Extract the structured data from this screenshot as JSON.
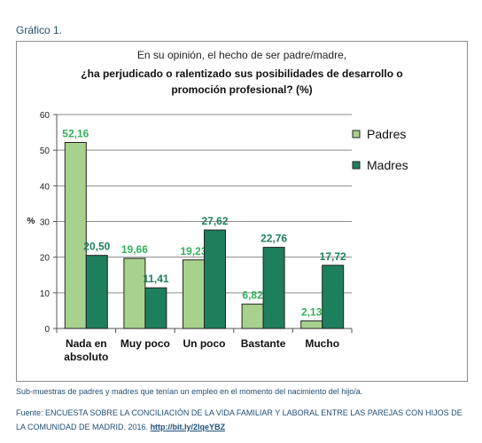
{
  "heading": "Gráfico 1.",
  "chart_data": {
    "type": "bar",
    "title_line1": "En su opinión, el hecho de ser padre/madre,",
    "title_line2": "¿ha perjudicado o ralentizado sus posibilidades de desarrollo o",
    "title_line3": "promoción profesional? (%)",
    "ylabel": "%",
    "xlabel": "",
    "ylim": [
      0,
      60
    ],
    "yticks": [
      "0",
      "10",
      "20",
      "30",
      "40",
      "50",
      "60"
    ],
    "categories": [
      "Nada en absoluto",
      "Muy poco",
      "Un poco",
      "Bastante",
      "Mucho"
    ],
    "category_lines": [
      [
        "Nada en",
        "absoluto"
      ],
      [
        "Muy poco"
      ],
      [
        "Un poco"
      ],
      [
        "Bastante"
      ],
      [
        "Mucho"
      ]
    ],
    "series": [
      {
        "name": "Padres",
        "values": [
          52.16,
          19.66,
          19.23,
          6.82,
          2.13
        ],
        "labels": [
          "52,16",
          "19,66",
          "19,23",
          "6,82",
          "2,13"
        ],
        "color": "#a9d18e",
        "label_color": "#33b05a"
      },
      {
        "name": "Madres",
        "values": [
          20.5,
          11.41,
          27.62,
          22.76,
          17.72
        ],
        "labels": [
          "20,50",
          "11,41",
          "27,62",
          "22,76",
          "17,72"
        ],
        "color": "#1e7f5c",
        "label_color": "#1e7f5c"
      }
    ],
    "legend_position": "right",
    "grid": true
  },
  "note": "Sub-muestras de padres y madres que tenían un empleo en el momento del nacimiento del hijo/a.",
  "source": {
    "prefix": "Fuente: ENCUESTA SOBRE LA CONCILIACIÓN DE LA VIDA FAMILIAR Y LABORAL ENTRE LAS PAREJAS CON HIJOS DE LA COMUNIDAD DE MADRID. 2016.",
    "link_text": "http://bit.ly/2lqeYBZ"
  }
}
